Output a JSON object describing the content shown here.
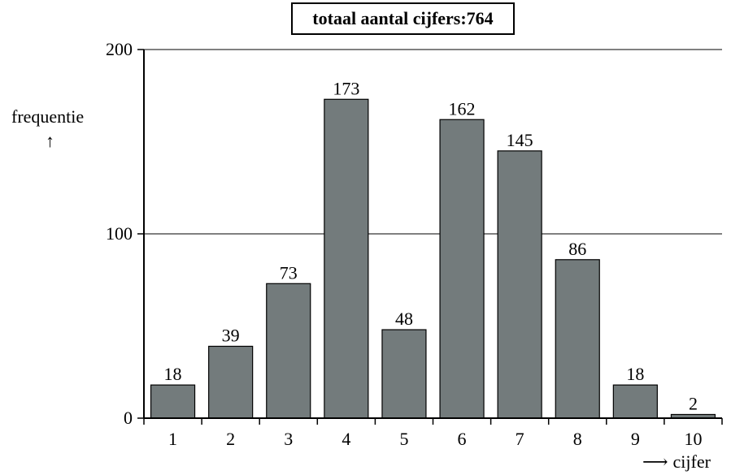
{
  "chart_data": {
    "type": "bar",
    "title": "totaal aantal cijfers:764",
    "ylabel": "frequentie",
    "ylabel_arrow": "↑",
    "xlabel": "cijfer",
    "xlabel_arrow": "⟶",
    "categories": [
      "1",
      "2",
      "3",
      "4",
      "5",
      "6",
      "7",
      "8",
      "9",
      "10"
    ],
    "values": [
      18,
      39,
      73,
      173,
      48,
      162,
      145,
      86,
      18,
      2
    ],
    "ylim": [
      0,
      200
    ],
    "yticks": [
      "0",
      "100",
      "200"
    ],
    "grid": true,
    "bar_color": "#737b7c",
    "data_labels": true
  }
}
